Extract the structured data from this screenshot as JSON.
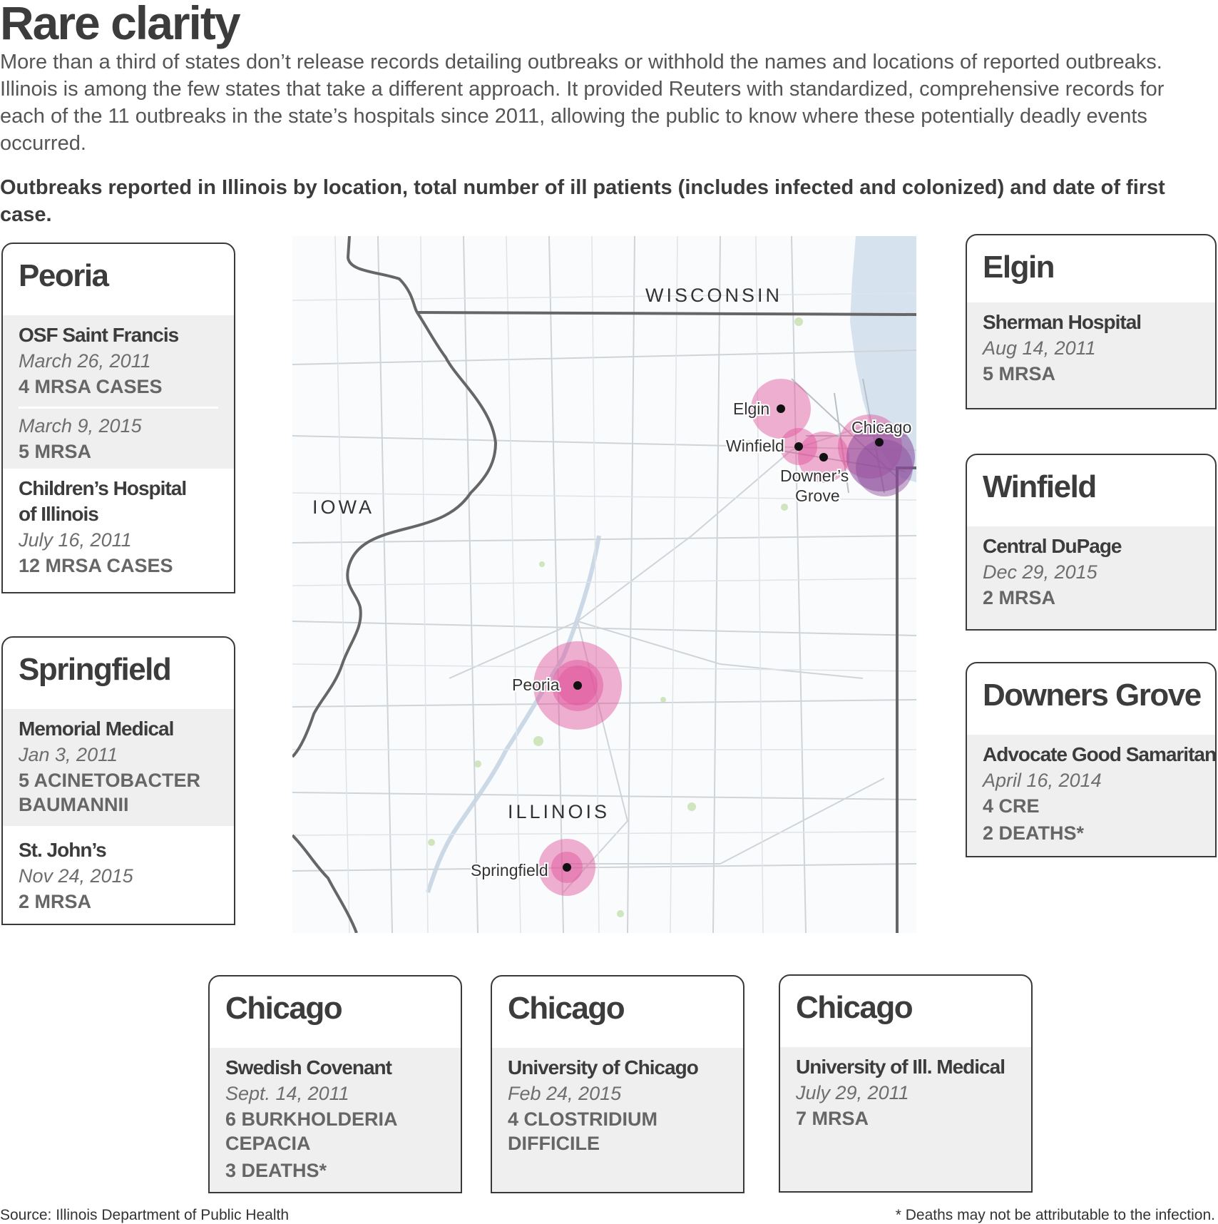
{
  "title": "Rare clarity",
  "intro": "More than a third of states don’t release records detailing outbreaks or withhold the names and locations of reported outbreaks. Illinois is among the few states that take a different approach. It provided Reuters with standardized, comprehensive records for each of the 11 outbreaks in the state’s hospitals since 2011, allowing the public to know where these potentially deadly events occurred.",
  "subtitle": "Outbreaks reported in Illinois by location, total number of ill patients (includes infected and colonized) and date of first case.",
  "map": {
    "state_labels": [
      "WISCONSIN",
      "IOWA",
      "ILLINOIS"
    ],
    "city_labels": {
      "elgin": "Elgin",
      "winfield": "Winfield",
      "downers_line1": "Downer’s",
      "downers_line2": "Grove",
      "chicago": "Chicago",
      "peoria": "Peoria",
      "springfield": "Springfield"
    },
    "colors": {
      "bubble": "#e0509a",
      "bubble_chicago": "#8a4a9a",
      "water": "#d6e3ef",
      "roads": "#c9ced3",
      "border": "#666666",
      "green": "#c8e0b5"
    }
  },
  "cards": {
    "peoria": {
      "city": "Peoria",
      "entries": [
        {
          "hospital": "OSF Saint Francis",
          "date": "March 26, 2011",
          "cases": "4 MRSA CASES"
        },
        {
          "date": "March 9, 2015",
          "cases": "5 MRSA"
        },
        {
          "hospital_line1": "Children’s Hospital",
          "hospital_line2": "of Illinois",
          "date": "July 16, 2011",
          "cases": "12 MRSA CASES"
        }
      ]
    },
    "springfield": {
      "city": "Springfield",
      "entries": [
        {
          "hospital": "Memorial Medical",
          "date": "Jan 3, 2011",
          "cases_line1": "5 ACINETOBACTER",
          "cases_line2": "BAUMANNII"
        },
        {
          "hospital": "St. John’s",
          "date": "Nov 24, 2015",
          "cases": "2 MRSA"
        }
      ]
    },
    "elgin": {
      "city": "Elgin",
      "hospital": "Sherman Hospital",
      "date": "Aug 14, 2011",
      "cases": "5 MRSA"
    },
    "winfield": {
      "city": "Winfield",
      "hospital": "Central DuPage",
      "date": "Dec 29, 2015",
      "cases": "2 MRSA"
    },
    "downers": {
      "city": "Downers Grove",
      "hospital": "Advocate Good Samaritan",
      "date": "April 16, 2014",
      "cases": "4 CRE",
      "deaths": "2 DEATHS*"
    },
    "chicago1": {
      "city": "Chicago",
      "hospital": "Swedish Covenant",
      "date": "Sept. 14, 2011",
      "cases_line1": "6 BURKHOLDERIA",
      "cases_line2": "CEPACIA",
      "deaths": "3 DEATHS*"
    },
    "chicago2": {
      "city": "Chicago",
      "hospital": "University of Chicago",
      "date": "Feb 24, 2015",
      "cases_line1": "4 CLOSTRIDIUM",
      "cases_line2": "DIFFICILE"
    },
    "chicago3": {
      "city": "Chicago",
      "hospital": "University of Ill. Medical",
      "date": "July 29, 2011",
      "cases": "7 MRSA"
    }
  },
  "footer": {
    "source": "Source: Illinois Department of Public Health",
    "note": "* Deaths may not be attributable to the infection."
  }
}
